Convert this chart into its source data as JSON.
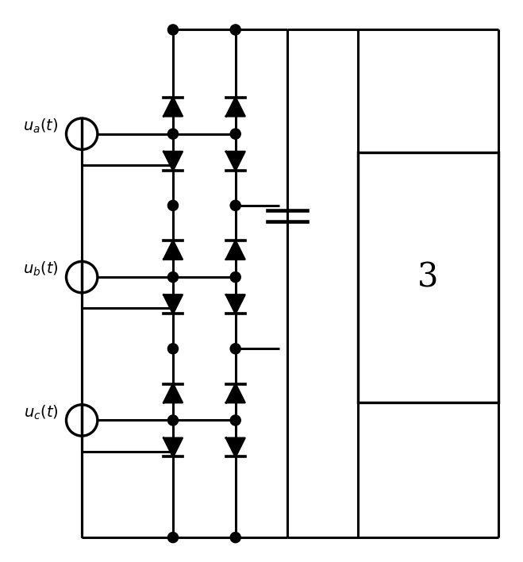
{
  "bg_color": "#ffffff",
  "line_color": "#000000",
  "line_width": 2.2,
  "figsize": [
    6.59,
    7.08
  ],
  "dpi": 100,
  "labels": [
    "$u_a(t)$",
    "$u_b(t)$",
    "$u_c(t)$"
  ],
  "load_label": "3",
  "label_fontsize": 14,
  "xlim": [
    0,
    10
  ],
  "ylim": [
    0,
    10.75
  ]
}
